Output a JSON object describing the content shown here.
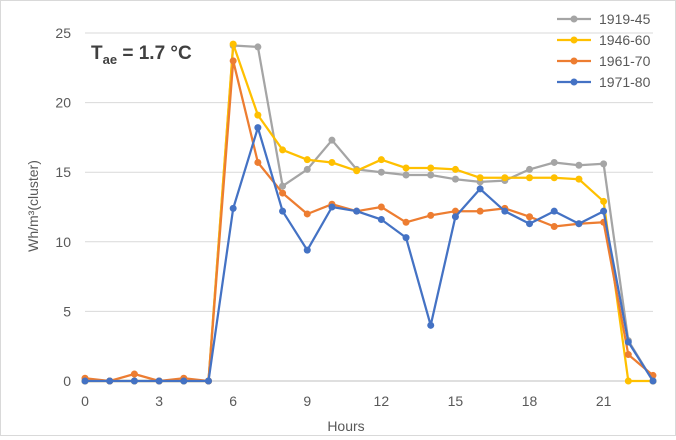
{
  "chart_data": {
    "type": "line",
    "annotation": {
      "symbol": "T",
      "subscript": "ae",
      "rest": " = 1.7 °C"
    },
    "xlabel": "Hours",
    "ylabel": "Wh/m³(cluster)",
    "xlim": [
      0,
      23
    ],
    "ylim": [
      0,
      25
    ],
    "xticks": [
      "0",
      "3",
      "6",
      "9",
      "12",
      "15",
      "18",
      "21"
    ],
    "yticks": [
      "0",
      "5",
      "10",
      "15",
      "20",
      "25"
    ],
    "grid": "horizontal",
    "legend_position": "top-right",
    "x": [
      0,
      1,
      2,
      3,
      4,
      5,
      6,
      7,
      8,
      9,
      10,
      11,
      12,
      13,
      14,
      15,
      16,
      17,
      18,
      19,
      20,
      21,
      22,
      23
    ],
    "series": [
      {
        "name": "1919-45",
        "color": "#a5a5a5",
        "values": [
          0,
          0,
          0,
          0,
          0,
          0,
          24.1,
          24.0,
          14.0,
          15.2,
          17.3,
          15.2,
          15.0,
          14.8,
          14.8,
          14.5,
          14.3,
          14.4,
          15.2,
          15.7,
          15.5,
          15.6,
          2.9,
          0
        ]
      },
      {
        "name": "1946-60",
        "color": "#ffc000",
        "values": [
          0,
          0,
          0,
          0,
          0,
          0,
          24.2,
          19.1,
          16.6,
          15.9,
          15.7,
          15.1,
          15.9,
          15.3,
          15.3,
          15.2,
          14.6,
          14.6,
          14.6,
          14.6,
          14.5,
          12.9,
          0,
          0
        ]
      },
      {
        "name": "1961-70",
        "color": "#ed7d31",
        "values": [
          0.2,
          0,
          0.5,
          0,
          0.2,
          0,
          23.0,
          15.7,
          13.5,
          12.0,
          12.7,
          12.2,
          12.5,
          11.4,
          11.9,
          12.2,
          12.2,
          12.4,
          11.8,
          11.1,
          11.3,
          11.4,
          1.9,
          0.4
        ]
      },
      {
        "name": "1971-80",
        "color": "#4472c4",
        "values": [
          0,
          0,
          0,
          0,
          0,
          0,
          12.4,
          18.2,
          12.2,
          9.4,
          12.5,
          12.2,
          11.6,
          10.3,
          4.0,
          11.8,
          13.8,
          12.2,
          11.3,
          12.2,
          11.3,
          12.2,
          2.8,
          0
        ]
      }
    ]
  }
}
